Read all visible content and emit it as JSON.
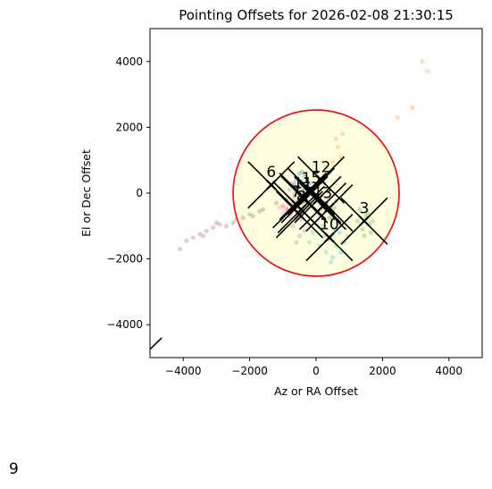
{
  "page_label": "9",
  "chart_data": {
    "type": "scatter",
    "title": "Pointing Offsets for 2026-02-08 21:30:15",
    "xlabel": "Az or RA Offset",
    "ylabel": "El or Dec Offset",
    "xlim": [
      -5000,
      5000
    ],
    "ylim": [
      -5000,
      5000
    ],
    "xticks": [
      -4000,
      -2000,
      0,
      2000,
      4000
    ],
    "yticks": [
      -4000,
      -2000,
      0,
      2000,
      4000
    ],
    "xtick_labels": [
      "−4000",
      "−2000",
      "0",
      "2000",
      "4000"
    ],
    "ytick_labels": [
      "−4000",
      "−2000",
      "0",
      "2000",
      "4000"
    ],
    "grid": false,
    "circle": {
      "center": [
        0,
        0
      ],
      "radius": 2500,
      "edge_color": "#e8141b",
      "fill_color": "#ffffe0"
    },
    "series": [
      {
        "color": "#1f77b4",
        "points": [
          [
            -500,
            600
          ],
          [
            -350,
            500
          ],
          [
            -450,
            350
          ],
          [
            -300,
            250
          ],
          [
            -550,
            150
          ],
          [
            -400,
            50
          ],
          [
            -250,
            -50
          ],
          [
            -600,
            400
          ],
          [
            -200,
            300
          ],
          [
            -350,
            100
          ],
          [
            -480,
            -150
          ],
          [
            -320,
            -250
          ],
          [
            -650,
            250
          ],
          [
            -150,
            150
          ],
          [
            -420,
            650
          ]
        ]
      },
      {
        "color": "#ff7f0e",
        "points": [
          [
            3200,
            4000
          ],
          [
            3350,
            3700
          ],
          [
            2900,
            2600
          ],
          [
            2450,
            2300
          ],
          [
            800,
            1800
          ],
          [
            650,
            1400
          ],
          [
            750,
            1100
          ],
          [
            500,
            950
          ],
          [
            300,
            800
          ],
          [
            350,
            600
          ],
          [
            150,
            450
          ],
          [
            200,
            350
          ],
          [
            50,
            200
          ],
          [
            -50,
            100
          ],
          [
            600,
            1650
          ]
        ]
      },
      {
        "color": "#2ca02c",
        "points": [
          [
            1300,
            -500
          ],
          [
            1500,
            -700
          ],
          [
            1600,
            -950
          ],
          [
            1400,
            -1100
          ],
          [
            1700,
            -850
          ],
          [
            1450,
            -1300
          ],
          [
            1550,
            -600
          ],
          [
            1250,
            -850
          ],
          [
            1650,
            -1200
          ],
          [
            300,
            -300
          ],
          [
            450,
            -600
          ],
          [
            550,
            -450
          ],
          [
            200,
            -500
          ],
          [
            400,
            -750
          ],
          [
            600,
            -250
          ],
          [
            350,
            -150
          ],
          [
            500,
            -800
          ]
        ]
      },
      {
        "color": "#d62728",
        "points": [
          [
            -900,
            -200
          ],
          [
            -750,
            -350
          ],
          [
            -850,
            -500
          ],
          [
            -650,
            -100
          ],
          [
            -1000,
            -400
          ]
        ]
      },
      {
        "color": "#9467bd",
        "points": [
          [
            -700,
            -1000
          ],
          [
            -500,
            -1300
          ],
          [
            -450,
            -800
          ],
          [
            -600,
            -1500
          ],
          [
            -350,
            -1150
          ],
          [
            -800,
            -700
          ],
          [
            -550,
            -600
          ],
          [
            -250,
            -900
          ]
        ]
      },
      {
        "color": "#8c564b",
        "points": [
          [
            -1200,
            -300
          ],
          [
            -1600,
            -500
          ],
          [
            -1900,
            -700
          ],
          [
            -2200,
            -750
          ],
          [
            -2500,
            -900
          ],
          [
            -2700,
            -1000
          ],
          [
            -2900,
            -950
          ],
          [
            -3100,
            -1050
          ],
          [
            -3300,
            -1150
          ],
          [
            -3500,
            -1250
          ],
          [
            -3700,
            -1350
          ],
          [
            -3900,
            -1450
          ],
          [
            -4100,
            -1700
          ],
          [
            -3000,
            -900
          ],
          [
            -2400,
            -800
          ],
          [
            -2000,
            -650
          ],
          [
            -1700,
            -550
          ],
          [
            -3400,
            -1300
          ]
        ]
      },
      {
        "color": "#e377c2",
        "points": [
          [
            -900,
            -450
          ],
          [
            -750,
            -600
          ],
          [
            -1000,
            -650
          ],
          [
            -600,
            -800
          ],
          [
            -850,
            -300
          ],
          [
            -700,
            -400
          ],
          [
            -950,
            -550
          ],
          [
            -500,
            -500
          ],
          [
            -1100,
            -450
          ],
          [
            -650,
            -250
          ]
        ]
      },
      {
        "color": "#7f7f7f",
        "points": [
          [
            -650,
            0
          ],
          [
            -500,
            -150
          ],
          [
            -800,
            100
          ],
          [
            -400,
            -250
          ],
          [
            -700,
            300
          ]
        ]
      },
      {
        "color": "#bcbd22",
        "points": [
          [
            -400,
            -300
          ],
          [
            -300,
            -450
          ],
          [
            -550,
            -200
          ],
          [
            -250,
            -350
          ]
        ]
      },
      {
        "color": "#17becf",
        "points": [
          [
            200,
            -1000
          ],
          [
            400,
            -1400
          ],
          [
            600,
            -1600
          ],
          [
            300,
            -1800
          ],
          [
            500,
            -1950
          ],
          [
            700,
            -1200
          ],
          [
            100,
            -1600
          ],
          [
            850,
            -1500
          ],
          [
            250,
            -1300
          ],
          [
            550,
            -1100
          ],
          [
            -100,
            -1200
          ],
          [
            450,
            -2100
          ],
          [
            750,
            -1800
          ],
          [
            -200,
            -1500
          ],
          [
            950,
            -1300
          ]
        ]
      }
    ],
    "markers": [
      {
        "label": "12",
        "x": 150,
        "y": 400
      },
      {
        "label": "6",
        "x": -1350,
        "y": 250
      },
      {
        "label": "11",
        "x": -400,
        "y": -100
      },
      {
        "label": "15",
        "x": -150,
        "y": 50
      },
      {
        "label": "13",
        "x": 200,
        "y": -400
      },
      {
        "label": "3",
        "x": 1450,
        "y": -850
      },
      {
        "label": "7",
        "x": -600,
        "y": -350
      },
      {
        "label": "8",
        "x": -450,
        "y": -500
      },
      {
        "label": "10",
        "x": 400,
        "y": -1350
      },
      {
        "label": "",
        "x": -350,
        "y": -200
      },
      {
        "label": "",
        "x": -500,
        "y": -650
      },
      {
        "label": "",
        "x": 50,
        "y": -200
      },
      {
        "label": "",
        "x": 400,
        "y": -450
      }
    ],
    "styles": {
      "marker_color": "#000000",
      "point_alpha": 0.28
    }
  }
}
